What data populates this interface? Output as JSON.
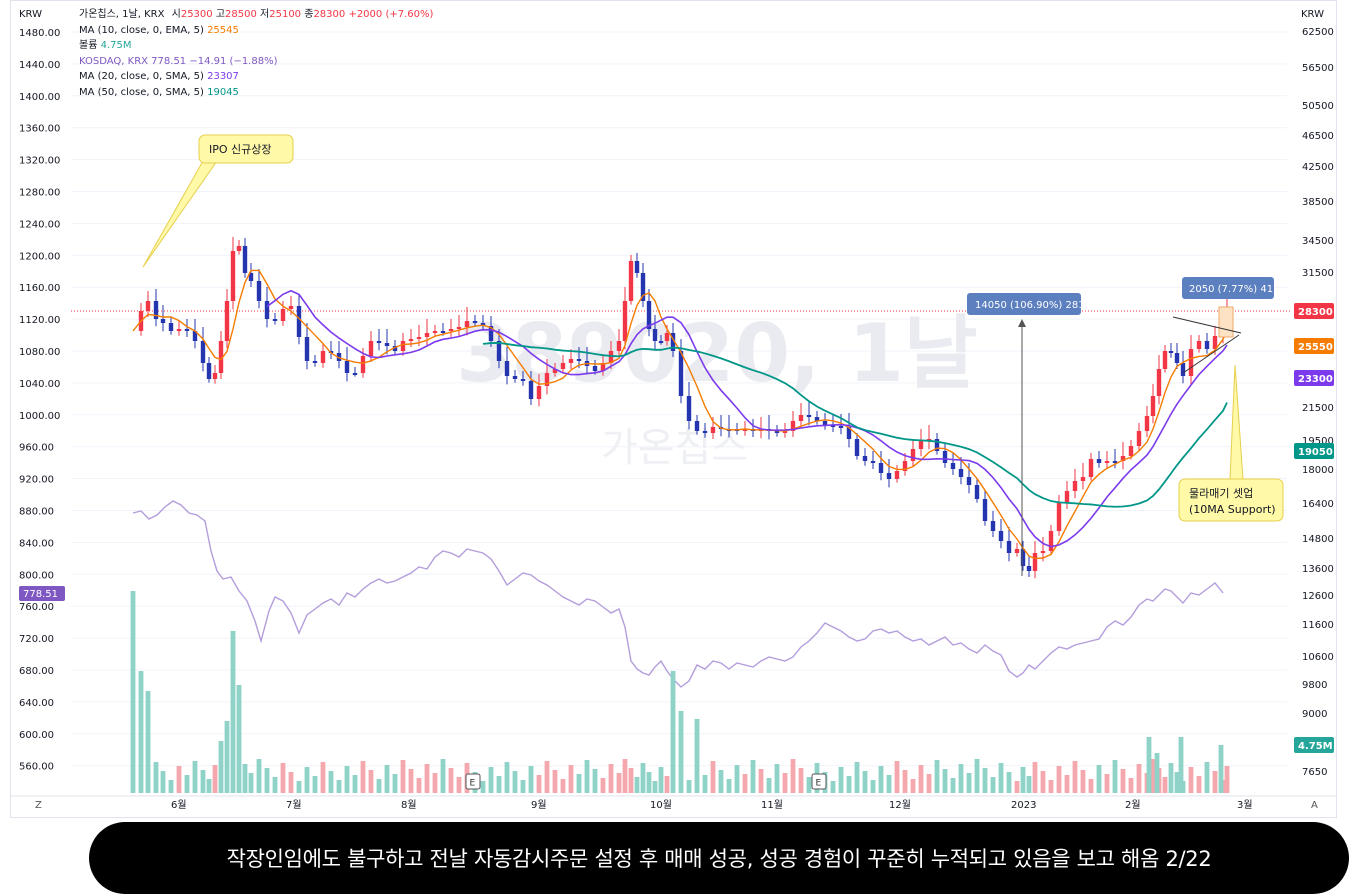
{
  "header": {
    "currency_left": "KRW",
    "currency_right": "KRW",
    "symbol_line": "가온칩스, 1날, KRX",
    "open_label": "시",
    "open_value": "25300",
    "high_label": "고",
    "high_value": "28500",
    "low_label": "저",
    "low_value": "25100",
    "close_label": "종",
    "close_value": "28300",
    "change": "+2000 (+7.60%)"
  },
  "legend": [
    {
      "label": "MA (10, close, 0, EMA, 5)",
      "value": "25545",
      "color": "#f57c00"
    },
    {
      "label": "볼륨",
      "value": "4.75M",
      "color": "#26a69a"
    },
    {
      "label": "KOSDAQ, KRX  778.51  −14.91 (−1.88%)",
      "value": "",
      "color": "#7e57c2"
    },
    {
      "label": "MA (20, close, 0, SMA, 5)",
      "value": "23307",
      "color": "#7c3aed"
    },
    {
      "label": "MA (50, close, 0, SMA, 5)",
      "value": "19045",
      "color": "#009688"
    }
  ],
  "watermark": {
    "symbol": "389020, 1날",
    "name": "가온칩스"
  },
  "chart_data": {
    "type": "candlestick",
    "left_axis": {
      "ticks": [
        "1480.00",
        "1440.00",
        "1400.00",
        "1360.00",
        "1320.00",
        "1280.00",
        "1240.00",
        "1200.00",
        "1160.00",
        "1120.00",
        "1080.00",
        "1040.00",
        "1000.00",
        "960.00",
        "920.00",
        "880.00",
        "840.00",
        "800.00",
        "760.00",
        "720.00",
        "680.00",
        "640.00",
        "600.00",
        "560.00"
      ],
      "current_badge": "778.51"
    },
    "right_axis": {
      "ticks": [
        "62500",
        "56500",
        "50500",
        "46500",
        "42500",
        "38500",
        "34500",
        "31500",
        "21500",
        "19500",
        "18000",
        "16400",
        "14800",
        "13600",
        "12600",
        "11600",
        "10600",
        "9800",
        "9000",
        "7650"
      ],
      "badges": [
        {
          "text": "28300",
          "color": "#f23645"
        },
        {
          "text": "25550",
          "color": "#f57c00"
        },
        {
          "text": "23300",
          "color": "#7c3aed"
        },
        {
          "text": "19050",
          "color": "#009688"
        },
        {
          "text": "4.75M",
          "color": "#26a69a"
        }
      ]
    },
    "x_axis": {
      "ticks": [
        "6월",
        "7월",
        "8월",
        "9월",
        "10월",
        "11월",
        "12월",
        "2023",
        "2월",
        "3월"
      ]
    },
    "price_line": 28300,
    "annotations": [
      {
        "text": "IPO 신규상장"
      },
      {
        "text": "14050 (106.90%) 281"
      },
      {
        "text": "2050 (7.77%) 41"
      },
      {
        "text": "물라매기 셋업",
        "text2": "(10MA Support)"
      }
    ],
    "events": [
      "E",
      "E"
    ]
  },
  "corner": {
    "left": "Z",
    "right": "A"
  },
  "caption": "작장인임에도 불구하고 전날 자동감시주문 설정 후 매매 성공, 성공 경험이 꾸준히 누적되고 있음을 보고 해옴 2/22"
}
